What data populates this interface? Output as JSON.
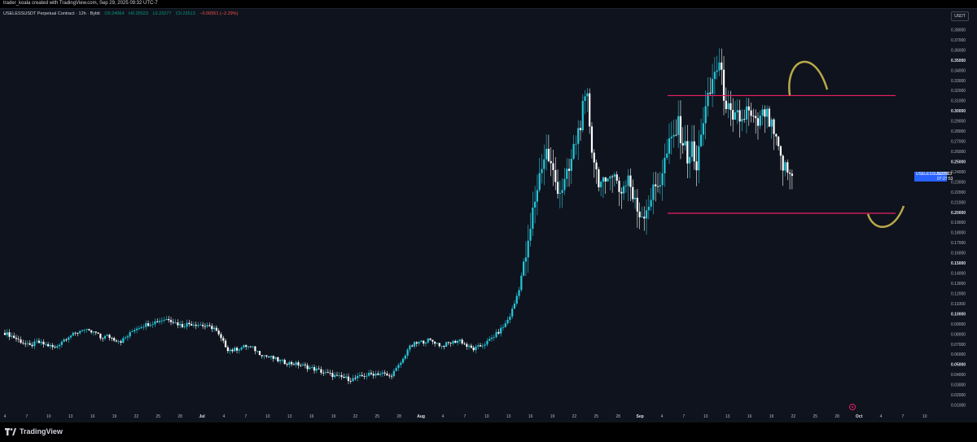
{
  "header": {
    "credit": "trader_koala created with TradingView.com, Sep 29, 2025 09:32 UTC-7"
  },
  "legend": {
    "symbol": "USELESSUSDT Perpetual Contract · 12h · Bybit",
    "open": "O0.24064",
    "high": "H0.25523",
    "low": "L0.23277",
    "close": "C0.23513",
    "change": "−0.00551 (−2.29%)"
  },
  "toolbar": {
    "currency": "USDT"
  },
  "price_tag": {
    "symbol": "USELESSUSDT.P",
    "price": "0.23513",
    "countdown": "07:27:53"
  },
  "brand": {
    "name": "TradingView"
  },
  "colors": {
    "bg": "#0f131d",
    "up": "#26c6da",
    "down": "#ffffff",
    "level": "#e91e63",
    "annotation": "#b9a94a",
    "accent": "#2962ff"
  },
  "chart_data": {
    "type": "candlestick",
    "symbol": "USELESSUSDT Perpetual Contract",
    "interval": "12h",
    "exchange": "Bybit",
    "x_tick_labels": [
      "4",
      "7",
      "10",
      "13",
      "16",
      "19",
      "22",
      "25",
      "28",
      "Jul",
      "4",
      "7",
      "10",
      "13",
      "16",
      "19",
      "22",
      "25",
      "28",
      "Aug",
      "4",
      "7",
      "10",
      "13",
      "16",
      "19",
      "22",
      "25",
      "28",
      "Sep",
      "4",
      "7",
      "10",
      "13",
      "16",
      "19",
      "22",
      "25",
      "28",
      "Oct",
      "4",
      "7",
      "10"
    ],
    "y_tick_labels": [
      "0.38000",
      "0.37000",
      "0.36000",
      "0.35000",
      "0.34000",
      "0.33000",
      "0.32000",
      "0.31000",
      "0.30000",
      "0.29000",
      "0.28000",
      "0.27000",
      "0.26000",
      "0.25000",
      "0.24000",
      "0.23000",
      "0.22000",
      "0.21000",
      "0.20000",
      "0.19000",
      "0.18000",
      "0.17000",
      "0.16000",
      "0.15000",
      "0.14000",
      "0.13000",
      "0.12000",
      "0.11000",
      "0.10000",
      "0.09000",
      "0.08000",
      "0.07000",
      "0.06000",
      "0.05000",
      "0.04000",
      "0.03000",
      "0.02000",
      "0.01000"
    ],
    "y_bold_labels": [
      "0.35000",
      "0.30000",
      "0.25000",
      "0.20000",
      "0.15000",
      "0.10000",
      "0.05000"
    ],
    "ylim": [
      0.0,
      0.39
    ],
    "horizontal_levels": [
      0.315,
      0.199
    ],
    "close_path": [
      [
        0,
        0.081
      ],
      [
        3,
        0.078
      ],
      [
        6,
        0.074
      ],
      [
        9,
        0.07
      ],
      [
        11,
        0.068
      ],
      [
        14,
        0.072
      ],
      [
        17,
        0.07
      ],
      [
        20,
        0.068
      ],
      [
        22,
        0.066
      ],
      [
        25,
        0.073
      ],
      [
        28,
        0.078
      ],
      [
        31,
        0.08
      ],
      [
        34,
        0.085
      ],
      [
        37,
        0.082
      ],
      [
        40,
        0.081
      ],
      [
        42,
        0.076
      ],
      [
        45,
        0.078
      ],
      [
        48,
        0.075
      ],
      [
        51,
        0.073
      ],
      [
        54,
        0.078
      ],
      [
        57,
        0.085
      ],
      [
        60,
        0.088
      ],
      [
        63,
        0.09
      ],
      [
        66,
        0.092
      ],
      [
        69,
        0.094
      ],
      [
        72,
        0.095
      ],
      [
        75,
        0.091
      ],
      [
        78,
        0.088
      ],
      [
        80,
        0.09
      ],
      [
        83,
        0.09
      ],
      [
        86,
        0.089
      ],
      [
        89,
        0.087
      ],
      [
        92,
        0.086
      ],
      [
        95,
        0.075
      ],
      [
        98,
        0.065
      ],
      [
        100,
        0.064
      ],
      [
        103,
        0.066
      ],
      [
        106,
        0.068
      ],
      [
        109,
        0.066
      ],
      [
        112,
        0.061
      ],
      [
        115,
        0.058
      ],
      [
        118,
        0.056
      ],
      [
        120,
        0.054
      ],
      [
        123,
        0.052
      ],
      [
        126,
        0.051
      ],
      [
        129,
        0.05
      ],
      [
        132,
        0.048
      ],
      [
        135,
        0.046
      ],
      [
        138,
        0.044
      ],
      [
        140,
        0.042
      ],
      [
        143,
        0.04
      ],
      [
        146,
        0.038
      ],
      [
        149,
        0.037
      ],
      [
        152,
        0.035
      ],
      [
        155,
        0.037
      ],
      [
        158,
        0.039
      ],
      [
        160,
        0.04
      ],
      [
        163,
        0.041
      ],
      [
        166,
        0.041
      ],
      [
        169,
        0.038
      ],
      [
        172,
        0.045
      ],
      [
        175,
        0.055
      ],
      [
        177,
        0.065
      ],
      [
        180,
        0.07
      ],
      [
        183,
        0.072
      ],
      [
        186,
        0.074
      ],
      [
        189,
        0.072
      ],
      [
        192,
        0.068
      ],
      [
        194,
        0.07
      ],
      [
        197,
        0.072
      ],
      [
        200,
        0.074
      ],
      [
        203,
        0.068
      ],
      [
        206,
        0.065
      ],
      [
        209,
        0.068
      ],
      [
        212,
        0.072
      ],
      [
        214,
        0.076
      ],
      [
        217,
        0.082
      ],
      [
        220,
        0.09
      ],
      [
        222,
        0.098
      ],
      [
        224,
        0.11
      ],
      [
        226,
        0.125
      ],
      [
        228,
        0.15
      ],
      [
        230,
        0.165
      ],
      [
        232,
        0.2
      ],
      [
        234,
        0.225
      ],
      [
        236,
        0.248
      ],
      [
        238,
        0.26
      ],
      [
        240,
        0.245
      ],
      [
        242,
        0.23
      ],
      [
        244,
        0.222
      ],
      [
        246,
        0.228
      ],
      [
        248,
        0.24
      ],
      [
        250,
        0.262
      ],
      [
        252,
        0.28
      ],
      [
        254,
        0.3
      ],
      [
        256,
        0.31
      ],
      [
        258,
        0.265
      ],
      [
        260,
        0.24
      ],
      [
        262,
        0.228
      ],
      [
        264,
        0.222
      ],
      [
        266,
        0.245
      ],
      [
        268,
        0.235
      ],
      [
        270,
        0.222
      ],
      [
        272,
        0.225
      ],
      [
        274,
        0.236
      ],
      [
        276,
        0.214
      ],
      [
        278,
        0.202
      ],
      [
        280,
        0.198
      ],
      [
        282,
        0.205
      ],
      [
        284,
        0.215
      ],
      [
        286,
        0.225
      ],
      [
        288,
        0.232
      ],
      [
        290,
        0.25
      ],
      [
        292,
        0.265
      ],
      [
        294,
        0.275
      ],
      [
        296,
        0.285
      ],
      [
        298,
        0.27
      ],
      [
        300,
        0.255
      ],
      [
        302,
        0.262
      ],
      [
        304,
        0.24
      ],
      [
        306,
        0.282
      ],
      [
        308,
        0.3
      ],
      [
        310,
        0.318
      ],
      [
        312,
        0.34
      ],
      [
        314,
        0.345
      ],
      [
        316,
        0.318
      ],
      [
        318,
        0.3
      ],
      [
        320,
        0.285
      ],
      [
        322,
        0.295
      ],
      [
        324,
        0.29
      ],
      [
        326,
        0.3
      ],
      [
        328,
        0.292
      ],
      [
        330,
        0.285
      ],
      [
        332,
        0.29
      ],
      [
        334,
        0.298
      ],
      [
        336,
        0.288
      ],
      [
        338,
        0.276
      ],
      [
        340,
        0.258
      ],
      [
        342,
        0.245
      ],
      [
        344,
        0.24
      ],
      [
        346,
        0.235
      ]
    ]
  }
}
